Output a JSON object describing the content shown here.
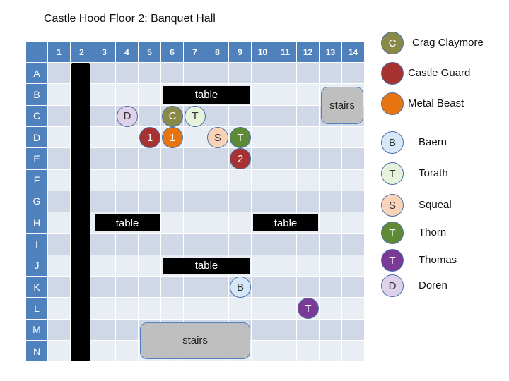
{
  "title": "Castle Hood Floor 2: Banquet Hall",
  "columns": [
    "1",
    "2",
    "3",
    "4",
    "5",
    "6",
    "7",
    "8",
    "9",
    "10",
    "11",
    "12",
    "13",
    "14"
  ],
  "rows": [
    "A",
    "B",
    "C",
    "D",
    "E",
    "F",
    "G",
    "H",
    "I",
    "J",
    "K",
    "L",
    "M",
    "N"
  ],
  "colors": {
    "header_blue": "#4f81bd",
    "row_light": "#e9edf4",
    "row_dark": "#d0d8e8",
    "crag": "#8a8a48",
    "guard": "#a83232",
    "beast": "#e8740f",
    "baern": "#d6e8f7",
    "torath": "#e6f2d9",
    "squeal": "#f9d3b8",
    "thorn": "#5e8a35",
    "thomas": "#7a3a96",
    "doren": "#ddd2ea"
  },
  "tables": [
    {
      "label": "table",
      "area": "B6-B9"
    },
    {
      "label": "table",
      "area": "H3-H5"
    },
    {
      "label": "table",
      "area": "H10-H12"
    },
    {
      "label": "table",
      "area": "J6-J9"
    }
  ],
  "stairs": [
    {
      "label": "stairs",
      "area": "B13-C14"
    },
    {
      "label": "stairs",
      "area": "M5-N9"
    }
  ],
  "wall": {
    "area": "A2-N2"
  },
  "tokens": [
    {
      "letter": "D",
      "cell": "C4",
      "key": "doren",
      "text_color": "#333"
    },
    {
      "letter": "C",
      "cell": "C6",
      "key": "crag",
      "text_color": "#fff"
    },
    {
      "letter": "T",
      "cell": "C7",
      "key": "torath",
      "text_color": "#333"
    },
    {
      "letter": "1",
      "cell": "D5",
      "key": "guard",
      "text_color": "#fff"
    },
    {
      "letter": "1",
      "cell": "D6",
      "key": "beast",
      "text_color": "#fff"
    },
    {
      "letter": "S",
      "cell": "D8",
      "key": "squeal",
      "text_color": "#333"
    },
    {
      "letter": "T",
      "cell": "D9",
      "key": "thorn",
      "text_color": "#fff"
    },
    {
      "letter": "2",
      "cell": "E9",
      "key": "guard",
      "text_color": "#fff"
    },
    {
      "letter": "B",
      "cell": "K9",
      "key": "baern",
      "text_color": "#333"
    },
    {
      "letter": "T",
      "cell": "L12",
      "key": "thomas",
      "text_color": "#fff"
    }
  ],
  "legend": [
    {
      "letter": "C",
      "label": "Crag Claymore",
      "key": "crag",
      "text_color": "#fff"
    },
    {
      "letter": "",
      "label": "Castle Guard",
      "key": "guard",
      "text_color": "#fff"
    },
    {
      "letter": "",
      "label": "Metal Beast",
      "key": "beast",
      "text_color": "#fff"
    },
    {
      "letter": "B",
      "label": "Baern",
      "key": "baern",
      "text_color": "#333"
    },
    {
      "letter": "T",
      "label": "Torath",
      "key": "torath",
      "text_color": "#333"
    },
    {
      "letter": "S",
      "label": "Squeal",
      "key": "squeal",
      "text_color": "#333"
    },
    {
      "letter": "T",
      "label": "Thorn",
      "key": "thorn",
      "text_color": "#fff"
    },
    {
      "letter": "T",
      "label": "Thomas",
      "key": "thomas",
      "text_color": "#fff"
    },
    {
      "letter": "D",
      "label": "Doren",
      "key": "doren",
      "text_color": "#333"
    }
  ]
}
